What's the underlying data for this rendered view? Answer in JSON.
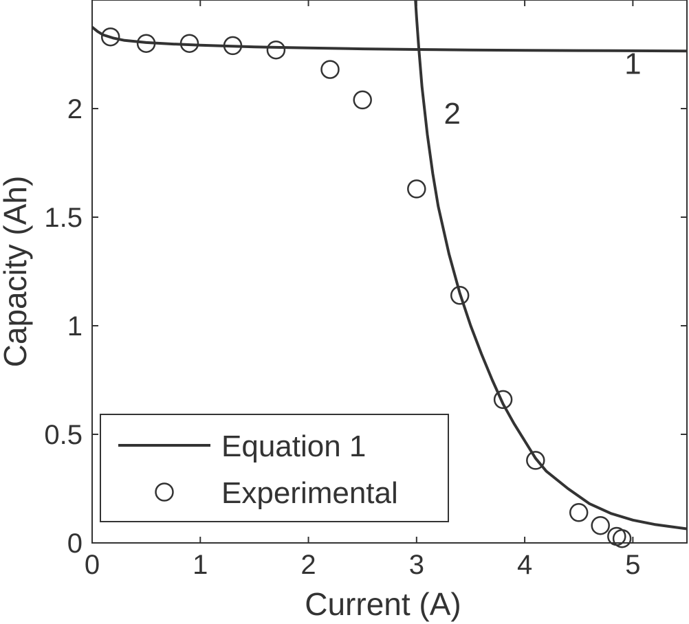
{
  "chart_data": {
    "type": "line",
    "title": "",
    "xlabel": "Current (A)",
    "ylabel": "Capacity (Ah)",
    "xlim": [
      0,
      5.5
    ],
    "ylim": [
      0,
      2.5
    ],
    "x_ticks": [
      0,
      1,
      2,
      3,
      4,
      5
    ],
    "y_ticks": [
      0,
      0.5,
      1,
      1.5,
      2
    ],
    "x_tick_labels": [
      "0",
      "1",
      "2",
      "3",
      "4",
      "5"
    ],
    "y_tick_labels": [
      "0",
      "0.5",
      "1",
      "1.5",
      "2"
    ],
    "grid": false,
    "legend_position": "bottom-left",
    "line_color": "#333333",
    "series": [
      {
        "name": "Equation 1",
        "kind": "line",
        "curve_label": "1",
        "x": [
          0.0,
          0.05,
          0.1,
          0.2,
          0.3,
          0.5,
          0.75,
          1.0,
          1.5,
          2.0,
          2.5,
          3.0,
          3.5,
          4.0,
          4.5,
          5.0,
          5.5
        ],
        "y": [
          2.375,
          2.355,
          2.34,
          2.324,
          2.314,
          2.304,
          2.297,
          2.292,
          2.284,
          2.279,
          2.275,
          2.272,
          2.27,
          2.268,
          2.267,
          2.266,
          2.265
        ]
      },
      {
        "name": "Equation 1",
        "kind": "line",
        "curve_label": "2",
        "x": [
          2.99,
          3.0,
          3.02,
          3.05,
          3.1,
          3.15,
          3.2,
          3.3,
          3.4,
          3.5,
          3.6,
          3.7,
          3.8,
          3.9,
          4.0,
          4.1,
          4.2,
          4.4,
          4.6,
          4.8,
          5.0,
          5.2,
          5.5
        ],
        "y": [
          2.5,
          2.42,
          2.28,
          2.1,
          1.88,
          1.7,
          1.55,
          1.33,
          1.15,
          1.0,
          0.87,
          0.75,
          0.64,
          0.55,
          0.47,
          0.39,
          0.33,
          0.25,
          0.18,
          0.135,
          0.105,
          0.085,
          0.065
        ]
      },
      {
        "name": "Experimental",
        "kind": "scatter",
        "x": [
          0.17,
          0.5,
          0.9,
          1.3,
          1.7,
          2.2,
          2.5,
          3.0,
          3.4,
          3.8,
          4.1,
          4.5,
          4.7,
          4.85,
          4.9
        ],
        "y": [
          2.33,
          2.3,
          2.3,
          2.29,
          2.27,
          2.18,
          2.04,
          1.63,
          1.14,
          0.66,
          0.38,
          0.14,
          0.08,
          0.03,
          0.02
        ]
      }
    ],
    "curve_labels": [
      {
        "text": "1",
        "x": 5.0,
        "y": 2.16
      },
      {
        "text": "2",
        "x": 3.33,
        "y": 1.93
      }
    ],
    "legend": [
      {
        "label": "Equation 1",
        "marker": "line"
      },
      {
        "label": "Experimental",
        "marker": "circle"
      }
    ]
  }
}
